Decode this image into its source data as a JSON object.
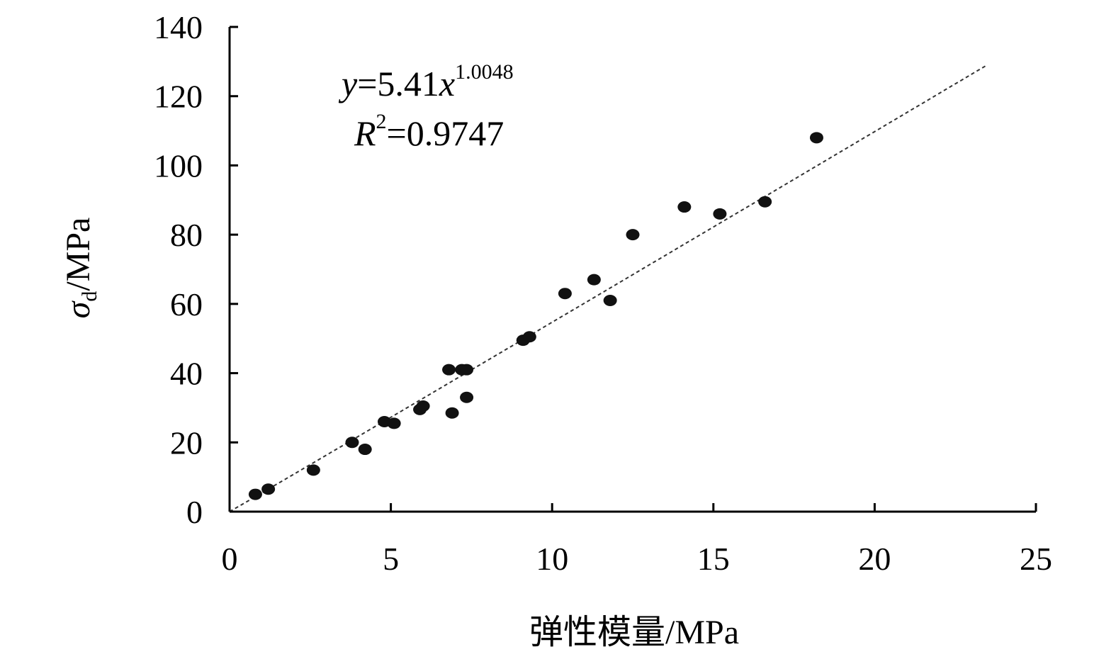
{
  "chart_data": {
    "type": "scatter",
    "xlabel": "弹性模量/MPa",
    "ylabel_symbol": "σ",
    "ylabel_subscript": "d",
    "ylabel_unit": "/MPa",
    "xlim": [
      0,
      25
    ],
    "ylim": [
      0,
      140
    ],
    "x_ticks": [
      0,
      5,
      10,
      15,
      20,
      25
    ],
    "y_ticks": [
      0,
      20,
      40,
      60,
      80,
      100,
      120,
      140
    ],
    "grid": false,
    "legend": "none",
    "points": [
      {
        "x": 0.8,
        "y": 5.0
      },
      {
        "x": 1.2,
        "y": 6.5
      },
      {
        "x": 2.6,
        "y": 12.0
      },
      {
        "x": 3.8,
        "y": 20.0
      },
      {
        "x": 4.2,
        "y": 18.0
      },
      {
        "x": 4.8,
        "y": 26.0
      },
      {
        "x": 5.1,
        "y": 25.5
      },
      {
        "x": 5.9,
        "y": 29.5
      },
      {
        "x": 6.0,
        "y": 30.5
      },
      {
        "x": 6.8,
        "y": 41.0
      },
      {
        "x": 6.9,
        "y": 28.5
      },
      {
        "x": 7.2,
        "y": 41.0
      },
      {
        "x": 7.35,
        "y": 41.0
      },
      {
        "x": 7.35,
        "y": 33.0
      },
      {
        "x": 9.1,
        "y": 49.5
      },
      {
        "x": 9.3,
        "y": 50.5
      },
      {
        "x": 10.4,
        "y": 63.0
      },
      {
        "x": 11.3,
        "y": 67.0
      },
      {
        "x": 11.8,
        "y": 61.0
      },
      {
        "x": 12.5,
        "y": 80.0
      },
      {
        "x": 14.1,
        "y": 88.0
      },
      {
        "x": 15.2,
        "y": 86.0
      },
      {
        "x": 16.6,
        "y": 89.5
      },
      {
        "x": 18.2,
        "y": 108.0
      }
    ],
    "fit": {
      "a": 5.41,
      "b": 1.0048,
      "x_range": [
        0,
        23.5
      ],
      "equation_y": "y",
      "equation_eq": "=5.41",
      "equation_x": "x",
      "equation_exp": "1.0048",
      "r2_R": "R",
      "r2_sup": "2",
      "r2_value": "=0.9747"
    }
  }
}
